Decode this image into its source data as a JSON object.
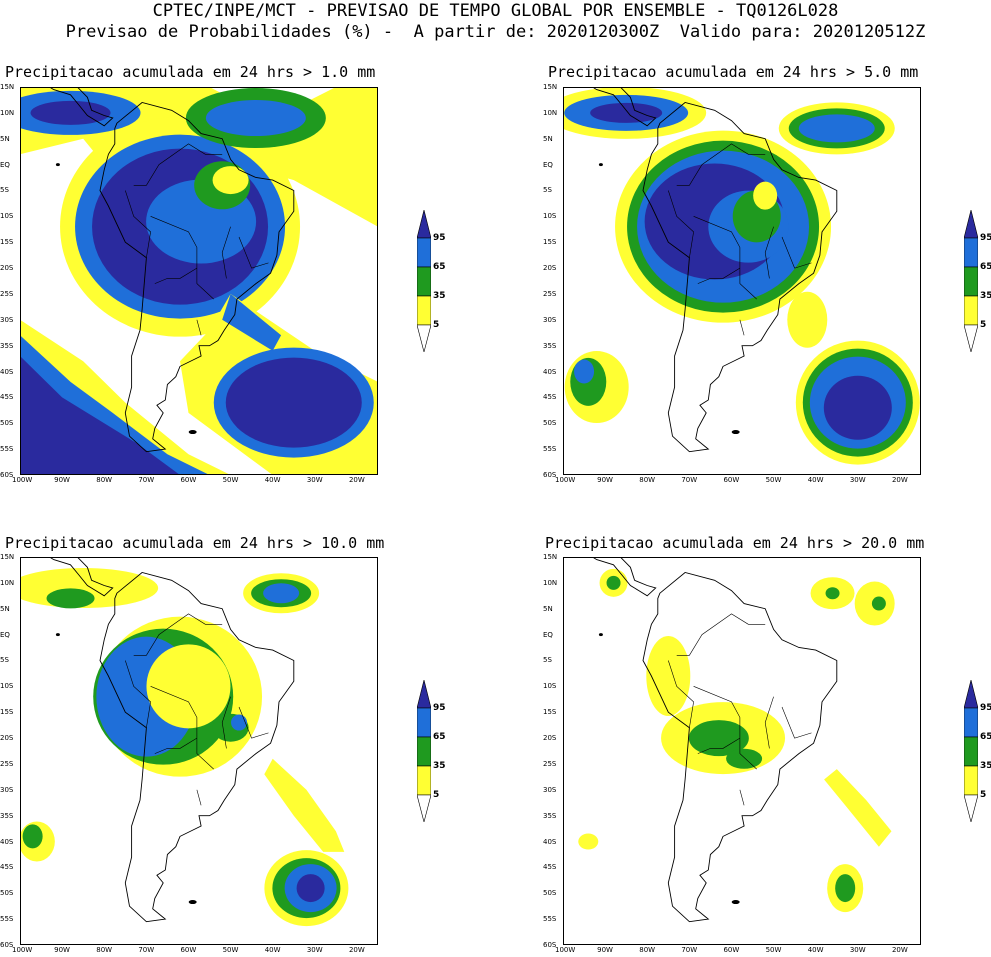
{
  "header": {
    "line1": "CPTEC/INPE/MCT - PREVISAO DE TEMPO GLOBAL POR ENSEMBLE - TQ0126L028",
    "line2": "Previsao de Probabilidades (%) -  A partir de: 2020120300Z  Valido para: 2020120512Z"
  },
  "axes": {
    "lat_labels": [
      "15N",
      "10N",
      "5N",
      "EQ",
      "5S",
      "10S",
      "15S",
      "20S",
      "25S",
      "30S",
      "35S",
      "40S",
      "45S",
      "50S",
      "55S",
      "60S"
    ],
    "lon_labels": [
      "100W",
      "90W",
      "80W",
      "70W",
      "60W",
      "50W",
      "40W",
      "30W",
      "20W"
    ]
  },
  "colorbar": {
    "levels": [
      "95",
      "65",
      "35",
      "5"
    ],
    "colors": {
      "c5": "#ffff33",
      "c35": "#1f9a1f",
      "c65": "#1f6fd9",
      "c95": "#2a2a9e"
    }
  },
  "panels": [
    {
      "title": "Precipitacao acumulada em 24 hrs > 1.0 mm",
      "threshold": "1.0 mm"
    },
    {
      "title": "Precipitacao acumulada em 24 hrs > 5.0 mm",
      "threshold": "5.0 mm"
    },
    {
      "title": "Precipitacao acumulada em 24 hrs > 10.0 mm",
      "threshold": "10.0 mm"
    },
    {
      "title": "Precipitacao acumulada em 24 hrs > 20.0 mm",
      "threshold": "20.0 mm"
    }
  ]
}
